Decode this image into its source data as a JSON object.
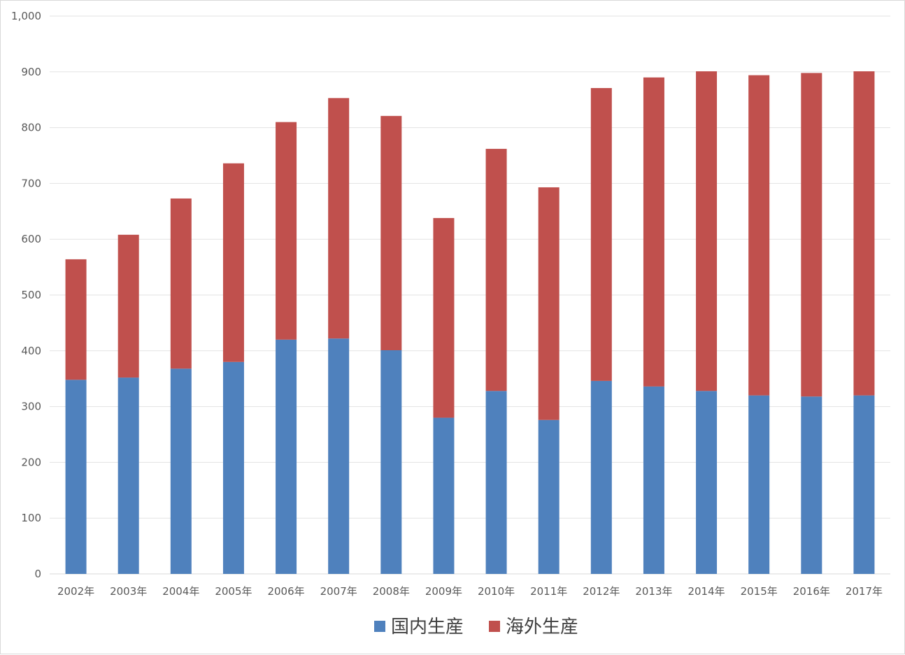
{
  "chart_data": {
    "type": "bar",
    "stacked": true,
    "categories": [
      "2002年",
      "2003年",
      "2004年",
      "2005年",
      "2006年",
      "2007年",
      "2008年",
      "2009年",
      "2010年",
      "2011年",
      "2012年",
      "2013年",
      "2014年",
      "2015年",
      "2016年",
      "2017年"
    ],
    "series": [
      {
        "name": "国内生産",
        "color": "#4f81bd",
        "values": [
          348,
          352,
          368,
          380,
          420,
          422,
          401,
          280,
          328,
          276,
          346,
          336,
          328,
          320,
          318,
          320
        ]
      },
      {
        "name": "海外生産",
        "color": "#c0504d",
        "values": [
          216,
          256,
          305,
          356,
          390,
          431,
          420,
          358,
          434,
          417,
          525,
          554,
          573,
          574,
          580,
          581
        ]
      }
    ],
    "ylim": [
      0,
      1000
    ],
    "yticks": [
      0,
      100,
      200,
      300,
      400,
      500,
      600,
      700,
      800,
      900,
      1000
    ],
    "ytick_labels": [
      "0",
      "100",
      "200",
      "300",
      "400",
      "500",
      "600",
      "700",
      "800",
      "900",
      "1,000"
    ],
    "grid": true,
    "legend_position": "bottom"
  }
}
